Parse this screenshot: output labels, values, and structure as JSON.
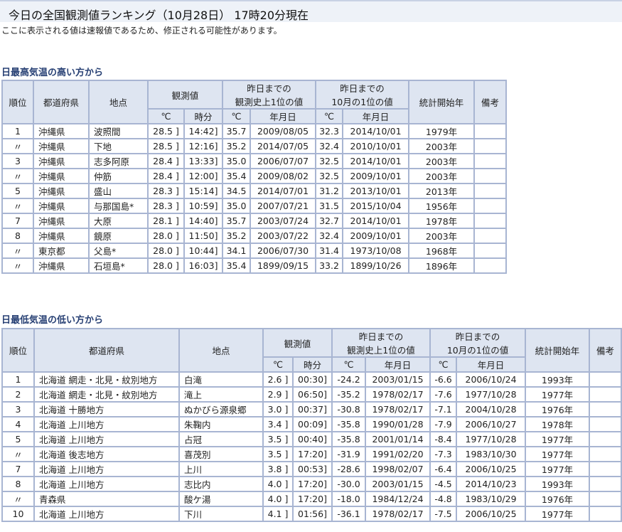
{
  "page": {
    "title": "今日の全国観測値ランキング（10月28日） 17時20分現在",
    "note": "ここに表示される値は速報値であるため、修正される可能性があります。"
  },
  "headers": {
    "rank": "順位",
    "pref": "都道府県",
    "place": "地点",
    "obs": "観測値",
    "hist": "昨日までの\n観測史上1位の値",
    "month": "昨日までの\n10月の1位の値",
    "start": "統計開始年",
    "remarks": "備考",
    "deg": "℃",
    "time": "時分",
    "date": "年月日"
  },
  "high": {
    "heading": "日最高気温の高い方から",
    "rows": [
      [
        "1",
        "沖縄県",
        "波照間",
        "28.5 ]",
        "14:42]",
        "35.7",
        "2009/08/05",
        "32.3",
        "2014/10/01",
        "1979年",
        ""
      ],
      [
        "〃",
        "沖縄県",
        "下地",
        "28.5 ]",
        "12:16]",
        "35.2",
        "2014/07/05",
        "32.4",
        "2010/10/01",
        "2003年",
        ""
      ],
      [
        "3",
        "沖縄県",
        "志多阿原",
        "28.4 ]",
        "13:33]",
        "35.0",
        "2006/07/07",
        "32.5",
        "2014/10/01",
        "2003年",
        ""
      ],
      [
        "〃",
        "沖縄県",
        "仲筋",
        "28.4 ]",
        "12:00]",
        "35.4",
        "2009/08/02",
        "32.5",
        "2009/10/01",
        "2003年",
        ""
      ],
      [
        "5",
        "沖縄県",
        "盛山",
        "28.3 ]",
        "15:14]",
        "34.5",
        "2014/07/01",
        "31.2",
        "2013/10/01",
        "2013年",
        ""
      ],
      [
        "〃",
        "沖縄県",
        "与那国島*",
        "28.3 ]",
        "10:59]",
        "35.0",
        "2007/07/21",
        "31.5",
        "2015/10/04",
        "1956年",
        ""
      ],
      [
        "7",
        "沖縄県",
        "大原",
        "28.1 ]",
        "14:40]",
        "35.7",
        "2003/07/24",
        "32.7",
        "2014/10/01",
        "1978年",
        ""
      ],
      [
        "8",
        "沖縄県",
        "鏡原",
        "28.0 ]",
        "11:50]",
        "35.2",
        "2003/07/22",
        "32.4",
        "2009/10/01",
        "2003年",
        ""
      ],
      [
        "〃",
        "東京都",
        "父島*",
        "28.0 ]",
        "10:44]",
        "34.1",
        "2006/07/30",
        "31.4",
        "1973/10/08",
        "1968年",
        ""
      ],
      [
        "〃",
        "沖縄県",
        "石垣島*",
        "28.0 ]",
        "16:03]",
        "35.4",
        "1899/09/15",
        "33.2",
        "1899/10/26",
        "1896年",
        ""
      ]
    ]
  },
  "low": {
    "heading": "日最低気温の低い方から",
    "rows": [
      [
        "1",
        "北海道 網走・北見・紋別地方",
        "白滝",
        "2.6 ]",
        "00:30]",
        "-24.2",
        "2003/01/15",
        "-6.6",
        "2006/10/24",
        "1993年",
        ""
      ],
      [
        "2",
        "北海道 網走・北見・紋別地方",
        "滝上",
        "2.9 ]",
        "06:50]",
        "-35.2",
        "1978/02/17",
        "-7.6",
        "1977/10/28",
        "1977年",
        ""
      ],
      [
        "3",
        "北海道 十勝地方",
        "ぬかびら源泉郷",
        "3.0 ]",
        "00:37]",
        "-30.8",
        "1978/02/17",
        "-7.1",
        "2004/10/28",
        "1976年",
        ""
      ],
      [
        "4",
        "北海道 上川地方",
        "朱鞠内",
        "3.4 ]",
        "00:09]",
        "-35.8",
        "1990/01/28",
        "-7.9",
        "2006/10/27",
        "1978年",
        ""
      ],
      [
        "5",
        "北海道 上川地方",
        "占冠",
        "3.5 ]",
        "00:40]",
        "-35.8",
        "2001/01/14",
        "-8.4",
        "1977/10/28",
        "1977年",
        ""
      ],
      [
        "〃",
        "北海道 後志地方",
        "喜茂別",
        "3.5 ]",
        "17:20]",
        "-31.9",
        "1991/02/20",
        "-7.3",
        "1983/10/30",
        "1977年",
        ""
      ],
      [
        "7",
        "北海道 上川地方",
        "上川",
        "3.8 ]",
        "00:53]",
        "-28.6",
        "1998/02/07",
        "-6.4",
        "2006/10/25",
        "1977年",
        ""
      ],
      [
        "8",
        "北海道 上川地方",
        "志比内",
        "4.0 ]",
        "17:20]",
        "-30.0",
        "2003/01/15",
        "-4.5",
        "2014/10/23",
        "1993年",
        ""
      ],
      [
        "〃",
        "青森県",
        "酸ケ湯",
        "4.0 ]",
        "17:20]",
        "-18.0",
        "1984/12/24",
        "-4.8",
        "1983/10/29",
        "1976年",
        ""
      ],
      [
        "10",
        "北海道 上川地方",
        "下川",
        "4.1 ]",
        "01:56]",
        "-36.1",
        "1978/02/17",
        "-7.5",
        "2006/10/25",
        "1977年",
        ""
      ]
    ]
  }
}
